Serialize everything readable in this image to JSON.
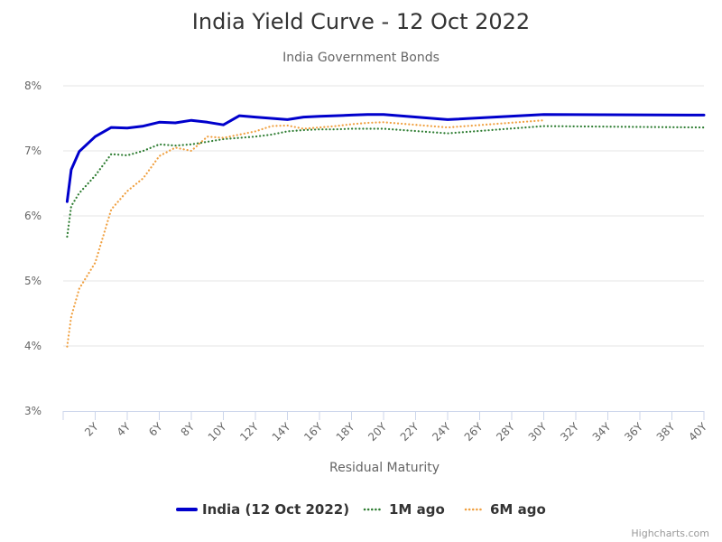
{
  "chart_data": {
    "type": "line",
    "title": "India Yield Curve - 12 Oct 2022",
    "subtitle": "India Government Bonds",
    "xlabel": "Residual Maturity",
    "ylabel": "",
    "ylim": [
      3,
      8
    ],
    "xlim": [
      0,
      40
    ],
    "y_ticks": [
      "3%",
      "4%",
      "5%",
      "6%",
      "7%",
      "8%"
    ],
    "x_ticks": [
      "2Y",
      "4Y",
      "6Y",
      "8Y",
      "10Y",
      "12Y",
      "14Y",
      "16Y",
      "18Y",
      "20Y",
      "22Y",
      "24Y",
      "26Y",
      "28Y",
      "30Y",
      "32Y",
      "34Y",
      "36Y",
      "38Y",
      "40Y"
    ],
    "x_tick_values": [
      2,
      4,
      6,
      8,
      10,
      12,
      14,
      16,
      18,
      20,
      22,
      24,
      26,
      28,
      30,
      32,
      34,
      36,
      38,
      40
    ],
    "grid": "horizontal",
    "legend_position": "bottom",
    "series": [
      {
        "name": "India (12 Oct 2022)",
        "color": "#0000cc",
        "style": "solid",
        "x": [
          0.25,
          0.5,
          1,
          2,
          3,
          4,
          5,
          6,
          7,
          8,
          9,
          10,
          11,
          12,
          13,
          14,
          15,
          16,
          17,
          18,
          19,
          20,
          24,
          30,
          40
        ],
        "y": [
          6.22,
          6.71,
          6.99,
          7.22,
          7.36,
          7.35,
          7.38,
          7.44,
          7.43,
          7.47,
          7.44,
          7.4,
          7.54,
          7.52,
          7.5,
          7.48,
          7.52,
          7.53,
          7.54,
          7.55,
          7.56,
          7.56,
          7.48,
          7.56,
          7.55
        ]
      },
      {
        "name": "1M ago",
        "color": "#2e7d32",
        "style": "dotted",
        "x": [
          0.25,
          0.5,
          1,
          2,
          3,
          4,
          5,
          6,
          7,
          8,
          9,
          10,
          11,
          12,
          13,
          14,
          15,
          16,
          17,
          18,
          19,
          20,
          24,
          30,
          40
        ],
        "y": [
          5.68,
          6.15,
          6.35,
          6.62,
          6.95,
          6.93,
          7.0,
          7.1,
          7.08,
          7.1,
          7.14,
          7.18,
          7.2,
          7.22,
          7.25,
          7.3,
          7.32,
          7.33,
          7.33,
          7.34,
          7.34,
          7.34,
          7.27,
          7.38,
          7.36
        ]
      },
      {
        "name": "6M ago",
        "color": "#f0a040",
        "style": "dotted",
        "x": [
          0.25,
          0.5,
          1,
          2,
          3,
          4,
          5,
          6,
          7,
          8,
          9,
          10,
          11,
          12,
          13,
          14,
          15,
          16,
          17,
          18,
          19,
          20,
          24,
          30
        ],
        "y": [
          3.99,
          4.45,
          4.88,
          5.28,
          6.1,
          6.38,
          6.58,
          6.92,
          7.05,
          7.0,
          7.22,
          7.2,
          7.25,
          7.3,
          7.38,
          7.39,
          7.34,
          7.36,
          7.38,
          7.41,
          7.43,
          7.44,
          7.36,
          7.47
        ]
      }
    ],
    "credits": "Highcharts.com"
  }
}
